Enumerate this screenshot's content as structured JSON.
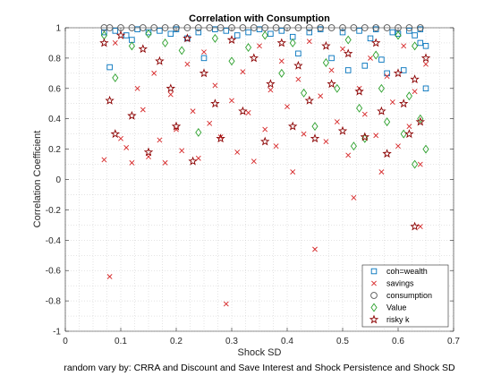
{
  "chart_data": {
    "type": "scatter",
    "title": "Correlation with Consumption",
    "xlabel": "Shock SD",
    "ylabel": "Correlation Coefficient",
    "footnote": "random vary by: CRRA and Discount and Save Interest and Shock Persistence and Shock SD",
    "xlim": [
      0,
      0.7
    ],
    "ylim": [
      -1,
      1
    ],
    "xticks": [
      "0",
      "0.1",
      "0.2",
      "0.3",
      "0.4",
      "0.5",
      "0.6",
      "0.7"
    ],
    "yticks": [
      "-1",
      "-0.8",
      "-0.6",
      "-0.4",
      "-0.2",
      "0",
      "0.2",
      "0.4",
      "0.6",
      "0.8",
      "1"
    ],
    "grid": "minor-dotted",
    "legend_position": "bottom-right",
    "colors": {
      "coh": "#0072BD",
      "savings": "#D62728",
      "consumption": "#555555",
      "value": "#2CA02C",
      "risky_k": "#8B0000"
    },
    "series": [
      {
        "name": "coh=wealth",
        "marker": "square",
        "points": [
          [
            0.07,
            0.97
          ],
          [
            0.08,
            0.74
          ],
          [
            0.09,
            0.98
          ],
          [
            0.11,
            0.95
          ],
          [
            0.12,
            0.92
          ],
          [
            0.13,
            0.99
          ],
          [
            0.15,
            0.97
          ],
          [
            0.17,
            0.98
          ],
          [
            0.19,
            0.96
          ],
          [
            0.2,
            0.99
          ],
          [
            0.22,
            0.93
          ],
          [
            0.24,
            0.97
          ],
          [
            0.25,
            0.8
          ],
          [
            0.27,
            0.99
          ],
          [
            0.29,
            0.98
          ],
          [
            0.31,
            0.95
          ],
          [
            0.33,
            0.97
          ],
          [
            0.35,
            0.99
          ],
          [
            0.37,
            0.96
          ],
          [
            0.39,
            0.98
          ],
          [
            0.41,
            0.94
          ],
          [
            0.42,
            0.83
          ],
          [
            0.44,
            0.97
          ],
          [
            0.46,
            0.99
          ],
          [
            0.48,
            0.8
          ],
          [
            0.5,
            0.97
          ],
          [
            0.51,
            0.72
          ],
          [
            0.53,
            0.98
          ],
          [
            0.54,
            0.75
          ],
          [
            0.55,
            0.93
          ],
          [
            0.56,
            0.99
          ],
          [
            0.57,
            0.79
          ],
          [
            0.58,
            0.7
          ],
          [
            0.59,
            0.97
          ],
          [
            0.6,
            0.96
          ],
          [
            0.61,
            0.72
          ],
          [
            0.62,
            0.98
          ],
          [
            0.63,
            0.95
          ],
          [
            0.64,
            0.9
          ],
          [
            0.65,
            0.88
          ],
          [
            0.65,
            0.6
          ],
          [
            0.64,
            0.99
          ]
        ]
      },
      {
        "name": "savings",
        "marker": "x",
        "points": [
          [
            0.07,
            0.13
          ],
          [
            0.08,
            -0.64
          ],
          [
            0.09,
            0.9
          ],
          [
            0.1,
            0.27
          ],
          [
            0.11,
            0.21
          ],
          [
            0.12,
            0.11
          ],
          [
            0.13,
            0.6
          ],
          [
            0.14,
            0.46
          ],
          [
            0.15,
            0.15
          ],
          [
            0.16,
            0.7
          ],
          [
            0.17,
            0.26
          ],
          [
            0.18,
            0.11
          ],
          [
            0.19,
            0.56
          ],
          [
            0.2,
            0.33
          ],
          [
            0.21,
            0.19
          ],
          [
            0.22,
            0.76
          ],
          [
            0.23,
            0.45
          ],
          [
            0.24,
            0.14
          ],
          [
            0.25,
            0.84
          ],
          [
            0.26,
            0.37
          ],
          [
            0.27,
            0.62
          ],
          [
            0.28,
            0.28
          ],
          [
            0.29,
            -0.82
          ],
          [
            0.3,
            0.52
          ],
          [
            0.31,
            0.18
          ],
          [
            0.32,
            0.71
          ],
          [
            0.33,
            0.44
          ],
          [
            0.34,
            0.12
          ],
          [
            0.35,
            0.88
          ],
          [
            0.36,
            0.33
          ],
          [
            0.37,
            0.59
          ],
          [
            0.38,
            0.22
          ],
          [
            0.39,
            0.78
          ],
          [
            0.4,
            0.48
          ],
          [
            0.41,
            0.05
          ],
          [
            0.42,
            0.66
          ],
          [
            0.43,
            0.3
          ],
          [
            0.44,
            0.91
          ],
          [
            0.45,
            -0.46
          ],
          [
            0.46,
            0.55
          ],
          [
            0.47,
            0.25
          ],
          [
            0.48,
            0.72
          ],
          [
            0.49,
            0.38
          ],
          [
            0.5,
            0.86
          ],
          [
            0.51,
            0.16
          ],
          [
            0.52,
            -0.12
          ],
          [
            0.53,
            0.6
          ],
          [
            0.54,
            0.43
          ],
          [
            0.55,
            0.8
          ],
          [
            0.56,
            0.29
          ],
          [
            0.57,
            0.05
          ],
          [
            0.58,
            0.68
          ],
          [
            0.59,
            0.51
          ],
          [
            0.6,
            0.22
          ],
          [
            0.61,
            0.88
          ],
          [
            0.62,
            0.35
          ],
          [
            0.63,
            0.58
          ],
          [
            0.64,
            0.1
          ],
          [
            0.65,
            0.76
          ],
          [
            0.64,
            -0.31
          ]
        ]
      },
      {
        "name": "consumption",
        "marker": "circle",
        "points": [
          [
            0.07,
            1.0
          ],
          [
            0.08,
            1.0
          ],
          [
            0.1,
            1.0
          ],
          [
            0.12,
            1.0
          ],
          [
            0.14,
            1.0
          ],
          [
            0.16,
            1.0
          ],
          [
            0.18,
            1.0
          ],
          [
            0.2,
            1.0
          ],
          [
            0.22,
            1.0
          ],
          [
            0.24,
            1.0
          ],
          [
            0.26,
            1.0
          ],
          [
            0.28,
            1.0
          ],
          [
            0.3,
            1.0
          ],
          [
            0.32,
            1.0
          ],
          [
            0.34,
            1.0
          ],
          [
            0.36,
            1.0
          ],
          [
            0.38,
            1.0
          ],
          [
            0.4,
            1.0
          ],
          [
            0.42,
            1.0
          ],
          [
            0.44,
            1.0
          ],
          [
            0.46,
            1.0
          ],
          [
            0.48,
            1.0
          ],
          [
            0.5,
            1.0
          ],
          [
            0.52,
            1.0
          ],
          [
            0.54,
            1.0
          ],
          [
            0.56,
            1.0
          ],
          [
            0.58,
            1.0
          ],
          [
            0.6,
            1.0
          ],
          [
            0.62,
            1.0
          ],
          [
            0.64,
            1.0
          ]
        ]
      },
      {
        "name": "Value",
        "marker": "diamond",
        "points": [
          [
            0.07,
            0.95
          ],
          [
            0.09,
            0.67
          ],
          [
            0.12,
            0.88
          ],
          [
            0.15,
            0.96
          ],
          [
            0.18,
            0.9
          ],
          [
            0.21,
            0.85
          ],
          [
            0.24,
            0.31
          ],
          [
            0.27,
            0.93
          ],
          [
            0.3,
            0.78
          ],
          [
            0.33,
            0.87
          ],
          [
            0.36,
            0.95
          ],
          [
            0.39,
            0.7
          ],
          [
            0.41,
            0.9
          ],
          [
            0.43,
            0.57
          ],
          [
            0.45,
            0.35
          ],
          [
            0.47,
            0.77
          ],
          [
            0.49,
            0.6
          ],
          [
            0.51,
            0.92
          ],
          [
            0.52,
            0.22
          ],
          [
            0.53,
            0.47
          ],
          [
            0.54,
            0.27
          ],
          [
            0.56,
            0.82
          ],
          [
            0.57,
            0.6
          ],
          [
            0.58,
            0.38
          ],
          [
            0.6,
            0.95
          ],
          [
            0.61,
            0.3
          ],
          [
            0.62,
            0.55
          ],
          [
            0.63,
            0.1
          ],
          [
            0.64,
            0.4
          ],
          [
            0.65,
            0.2
          ],
          [
            0.63,
            0.88
          ]
        ]
      },
      {
        "name": "risky k",
        "marker": "star",
        "points": [
          [
            0.07,
            0.9
          ],
          [
            0.08,
            0.52
          ],
          [
            0.09,
            0.3
          ],
          [
            0.1,
            0.95
          ],
          [
            0.12,
            0.42
          ],
          [
            0.14,
            0.86
          ],
          [
            0.15,
            0.18
          ],
          [
            0.17,
            0.78
          ],
          [
            0.19,
            0.6
          ],
          [
            0.2,
            0.35
          ],
          [
            0.22,
            0.93
          ],
          [
            0.23,
            0.12
          ],
          [
            0.25,
            0.7
          ],
          [
            0.27,
            0.5
          ],
          [
            0.28,
            0.27
          ],
          [
            0.3,
            0.92
          ],
          [
            0.32,
            0.45
          ],
          [
            0.34,
            0.8
          ],
          [
            0.36,
            0.25
          ],
          [
            0.37,
            0.63
          ],
          [
            0.39,
            0.9
          ],
          [
            0.41,
            0.35
          ],
          [
            0.42,
            0.75
          ],
          [
            0.44,
            0.52
          ],
          [
            0.45,
            0.27
          ],
          [
            0.47,
            0.88
          ],
          [
            0.48,
            0.63
          ],
          [
            0.5,
            0.32
          ],
          [
            0.51,
            0.83
          ],
          [
            0.53,
            0.58
          ],
          [
            0.54,
            0.28
          ],
          [
            0.56,
            0.9
          ],
          [
            0.57,
            0.45
          ],
          [
            0.58,
            0.17
          ],
          [
            0.6,
            0.7
          ],
          [
            0.61,
            0.5
          ],
          [
            0.62,
            0.3
          ],
          [
            0.63,
            0.66
          ],
          [
            0.64,
            0.38
          ],
          [
            0.65,
            0.8
          ],
          [
            0.63,
            -0.31
          ]
        ]
      }
    ]
  }
}
